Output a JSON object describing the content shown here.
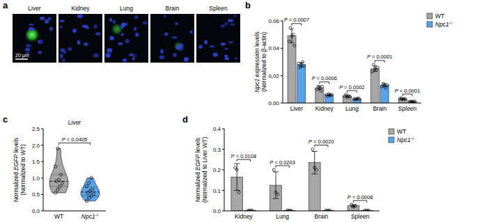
{
  "micrographs": {
    "label": "a",
    "panels": [
      "Liver",
      "Kidney",
      "Lung",
      "Brain",
      "Spleen"
    ],
    "scale_bar": "20 μm"
  },
  "chart_data": [
    {
      "type": "bar",
      "title": "b",
      "y_label": [
        "Npc1 expression levels",
        "(Normalized to β-actin)"
      ],
      "categories": [
        "Liver",
        "Kidney",
        "Lung",
        "Brain",
        "Spleen"
      ],
      "ylim": [
        0,
        0.06
      ],
      "yticks": [
        {
          "value": 0,
          "label": "0.00"
        },
        0.02,
        0.04,
        0.06
      ],
      "legend": "top-right",
      "annotations": [
        "P = 0.0007",
        "P = 0.0006",
        "P = 0.0002",
        "P = 0.0001",
        "P < 0.0001"
      ],
      "series": [
        {
          "name": "WT",
          "color": "#a6a6a6",
          "values": [
            0.049,
            0.011,
            0.005,
            0.025,
            0.003
          ],
          "errors": [
            0.005,
            0.0013,
            0.0008,
            0.002,
            0.0004
          ],
          "points": [
            [
              0.045,
              0.055,
              0.049,
              0.05,
              0.042
            ],
            [
              0.01,
              0.012,
              0.011,
              0.009,
              0.012
            ],
            [
              0.005,
              0.006,
              0.004,
              0.005,
              0.0045
            ],
            [
              0.023,
              0.028,
              0.025,
              0.024,
              0.026
            ],
            [
              0.003,
              0.0035,
              0.0025,
              0.003,
              0.0028
            ]
          ]
        },
        {
          "name": "Npc1-/-",
          "color": "#5aa3e8",
          "values": [
            0.028,
            0.006,
            0.003,
            0.013,
            0.001
          ],
          "errors": [
            0.0016,
            0.0006,
            0.0004,
            0.0012,
            0.0002
          ],
          "points": [
            [
              0.029,
              0.026,
              0.028,
              0.03,
              0.027
            ],
            [
              0.006,
              0.005,
              0.0065,
              0.0055,
              0.006
            ],
            [
              0.003,
              0.0025,
              0.003,
              0.0035,
              0.0028
            ],
            [
              0.012,
              0.014,
              0.013,
              0.011,
              0.013
            ],
            [
              0.001,
              0.0012,
              0.0008,
              0.001,
              0.0011
            ]
          ]
        }
      ]
    },
    {
      "type": "violin",
      "title": "c",
      "subtitle": "Liver",
      "y_label": [
        "Normalized EGFP levels",
        "(Normalized to WT)"
      ],
      "categories": [
        "WT",
        "Npc1-/-"
      ],
      "ylim": [
        0,
        2.5
      ],
      "yticks": [
        {
          "value": 0,
          "label": "0.0"
        },
        0.5,
        {
          "value": 1,
          "label": "1.0"
        },
        1.5,
        {
          "value": 2,
          "label": "2.0"
        },
        2.5
      ],
      "colors": [
        "#a6a6a6",
        "#5aa3e8"
      ],
      "annotations": [
        "P = 0.0405"
      ],
      "values": [
        [
          0.55,
          0.65,
          0.75,
          0.85,
          0.9,
          0.95,
          1.1,
          1.35,
          1.9
        ],
        [
          0.3,
          0.4,
          0.45,
          0.5,
          0.55,
          0.6,
          0.65,
          0.75,
          0.85,
          1.0
        ]
      ]
    },
    {
      "type": "bar",
      "title": "d",
      "y_label": [
        "Normalized EGFP levels",
        "(Normalized to Liver WT)"
      ],
      "categories": [
        "Kidney",
        "Lung",
        "Brain",
        "Spleen"
      ],
      "ylim": [
        0,
        0.4
      ],
      "yticks": [
        {
          "value": 0,
          "label": "0.0"
        },
        0.1,
        0.2,
        0.3,
        0.4
      ],
      "legend": "top-right",
      "annotations": [
        "P = 0.0108",
        "P = 0.0203",
        "P = 0.0020",
        "P = 0.0008"
      ],
      "series": [
        {
          "name": "WT",
          "color": "#a6a6a6",
          "values": [
            0.165,
            0.125,
            0.235,
            0.025
          ],
          "errors": [
            0.065,
            0.065,
            0.055,
            0.005
          ],
          "points": [
            [
              0.21,
              0.2,
              0.09
            ],
            [
              0.2,
              0.09,
              0.08
            ],
            [
              0.3,
              0.21,
              0.2
            ],
            [
              0.03,
              0.02,
              0.025
            ]
          ]
        },
        {
          "name": "Npc1-/-",
          "color": "#5aa3e8",
          "values": [
            0.002,
            0.002,
            0.002,
            0.002
          ],
          "errors": [
            0.001,
            0.001,
            0.001,
            0.001
          ],
          "points": [
            [
              0.002,
              0.002,
              0.002
            ],
            [
              0.002,
              0.002,
              0.002
            ],
            [
              0.002,
              0.002,
              0.002
            ],
            [
              0.002,
              0.002,
              0.002
            ]
          ]
        }
      ]
    }
  ]
}
